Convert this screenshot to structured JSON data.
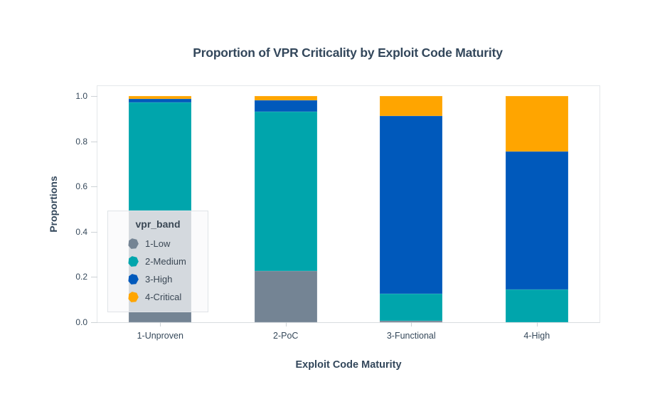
{
  "title": "Proportion of VPR Criticality by Exploit Code Maturity",
  "colors": {
    "title_text": "#33475B",
    "tick_text": "#35485A",
    "frame_line": "#E4E7EA",
    "gray_1_low": "#748494",
    "teal_2_medium": "#00A5AC",
    "blue_3_high": "#0059BB",
    "orange_4_critical": "#FFA500",
    "legend_background": "rgba(249,250,251,0.72)"
  },
  "chart_data": {
    "type": "bar",
    "stacked": true,
    "normalized": true,
    "title": "Proportion of VPR Criticality by Exploit Code Maturity",
    "xlabel": "Exploit Code Maturity",
    "ylabel": "Proportions",
    "categories": [
      "1-Unproven",
      "2-PoC",
      "3-Functional",
      "4-High"
    ],
    "y_ticks": [
      "0.0",
      "0.2",
      "0.4",
      "0.6",
      "0.8",
      "1.0"
    ],
    "ylim": [
      0,
      1.044
    ],
    "grid": false,
    "legend": {
      "title": "vpr_band",
      "position": "inside-bottom-left",
      "entries": [
        "1-Low",
        "2-Medium",
        "3-High",
        "4-Critical"
      ]
    },
    "series": [
      {
        "name": "1-Low",
        "color": "#748494",
        "values": [
          0.495,
          0.226,
          0.007,
          0.0
        ]
      },
      {
        "name": "2-Medium",
        "color": "#00A5AC",
        "values": [
          0.478,
          0.705,
          0.119,
          0.145
        ]
      },
      {
        "name": "3-High",
        "color": "#0059BB",
        "values": [
          0.013,
          0.05,
          0.785,
          0.61
        ]
      },
      {
        "name": "4-Critical",
        "color": "#FFA500",
        "values": [
          0.014,
          0.019,
          0.089,
          0.245
        ]
      }
    ]
  }
}
